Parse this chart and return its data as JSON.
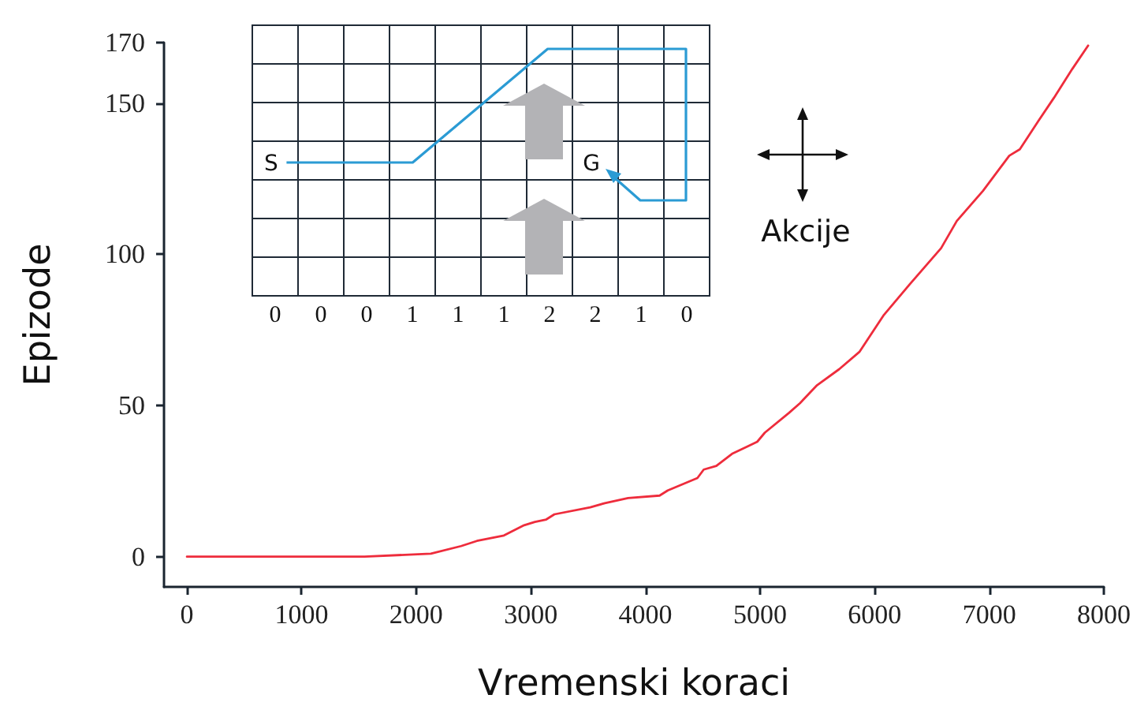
{
  "chart_data": {
    "type": "line",
    "xlabel": "Vremenski koraci",
    "ylabel": "Epizode",
    "x": [
      0,
      1550,
      2128,
      2392,
      2530,
      2766,
      2942,
      3036,
      3135,
      3206,
      3519,
      3646,
      3849,
      4124,
      4195,
      4454,
      4509,
      4619,
      4756,
      4894,
      4976,
      5042,
      5251,
      5350,
      5498,
      5691,
      5867,
      6076,
      6305,
      6580,
      6717,
      6946,
      7175,
      7267,
      7427,
      7564,
      7725,
      7863
    ],
    "series": [
      {
        "color": "#ee2c3c",
        "values": [
          0,
          0,
          1,
          3.5,
          5.2,
          7,
          10.4,
          11.5,
          12.3,
          14,
          16.3,
          17.7,
          19.4,
          20.2,
          21.9,
          26,
          28.8,
          30,
          34,
          36.5,
          38,
          41,
          47.5,
          50.8,
          56.7,
          62,
          67.7,
          79.7,
          90,
          102,
          111,
          121,
          132.6,
          134.7,
          144,
          151.7,
          161.3,
          169
        ]
      }
    ],
    "xlim": [
      -200,
      8000
    ],
    "xticks": [
      0,
      1000,
      2000,
      3000,
      4000,
      5000,
      6000,
      7000,
      8000
    ],
    "ylim": [
      -10,
      170
    ],
    "yticks": [
      0,
      50,
      100,
      150,
      170
    ],
    "grid": false,
    "marker": "none",
    "line_style": "solid",
    "annotations": [
      "S",
      "G",
      "Akcije",
      "0",
      "0",
      "0",
      "1",
      "1",
      "1",
      "2",
      "2",
      "1",
      "0"
    ]
  }
}
